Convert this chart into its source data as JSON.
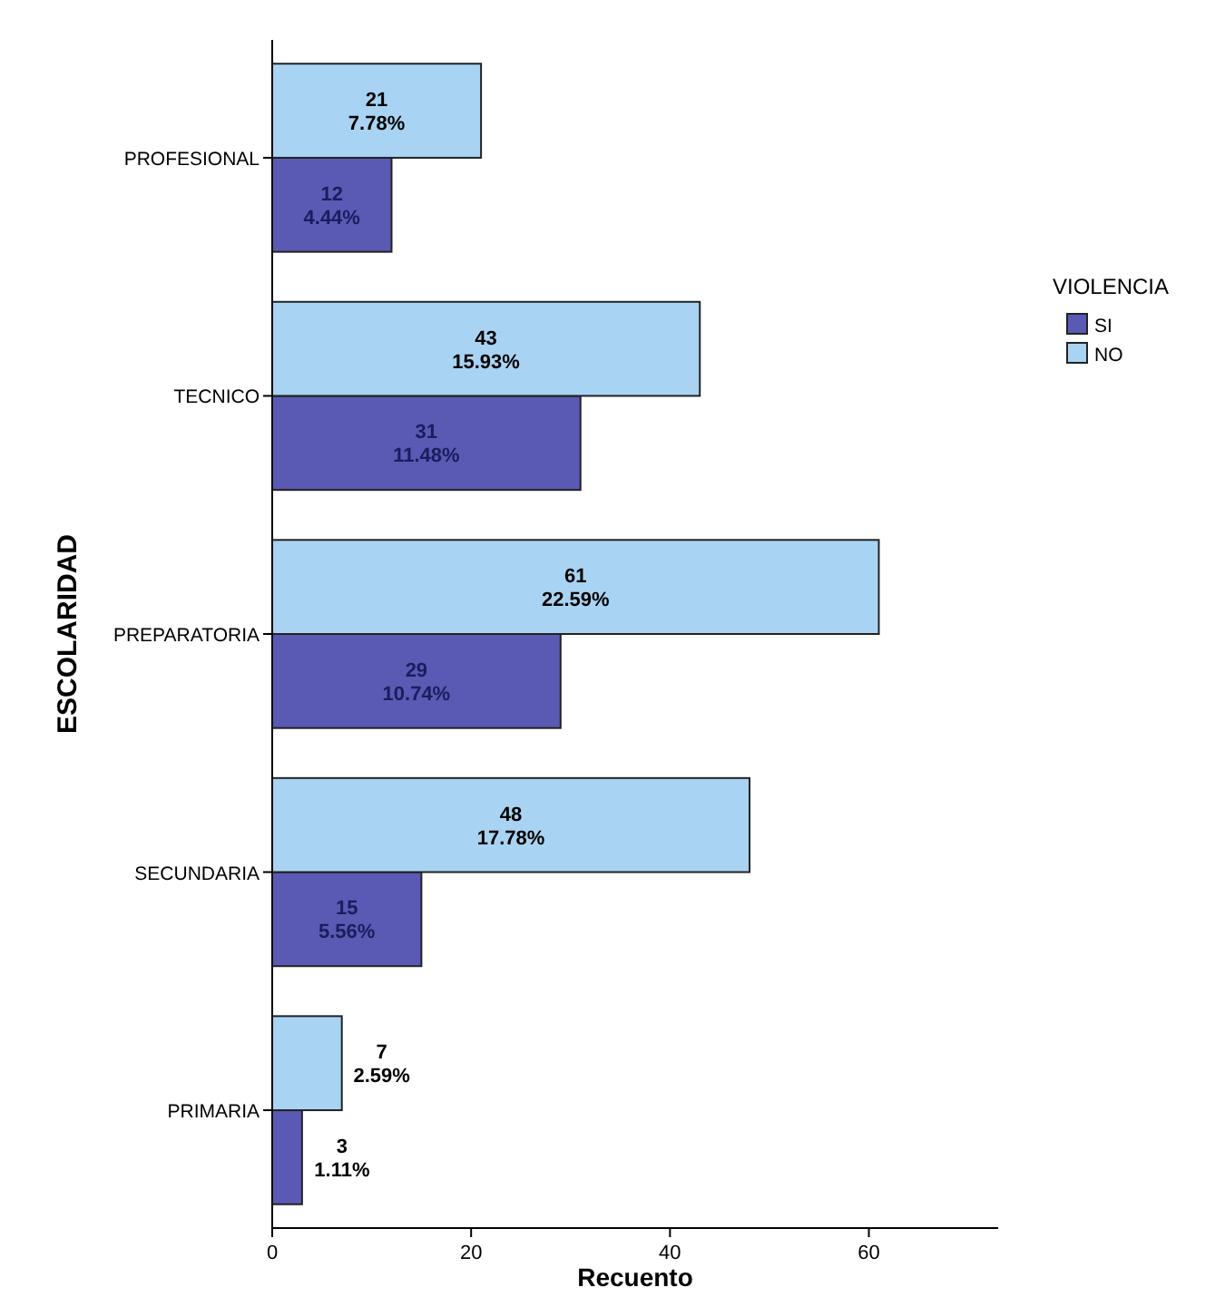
{
  "chart_data": {
    "type": "bar",
    "orientation": "horizontal",
    "xlabel": "Recuento",
    "ylabel": "ESCOLARIDAD",
    "legend_title": "VIOLENCIA",
    "legend": "right",
    "grid": false,
    "categories": [
      "PROFESIONAL",
      "TECNICO",
      "PREPARATORIA",
      "SECUNDARIA",
      "PRIMARIA"
    ],
    "xlim": [
      0,
      73
    ],
    "xticks": [
      0,
      20,
      40,
      60
    ],
    "series": [
      {
        "name": "SI",
        "color": "#5a5ab4",
        "values": [
          12,
          31,
          29,
          15,
          3
        ],
        "value_labels": [
          "12\n4.44%",
          "31\n11.48%",
          "29\n10.74%",
          "15\n5.56%",
          "3\n1.11%"
        ]
      },
      {
        "name": "NO",
        "color": "#a9d3f2",
        "values": [
          21,
          43,
          61,
          48,
          7
        ],
        "value_labels": [
          "21\n7.78%",
          "43\n15.93%",
          "61\n22.59%",
          "48\n17.78%",
          "7\n2.59%"
        ]
      }
    ]
  }
}
